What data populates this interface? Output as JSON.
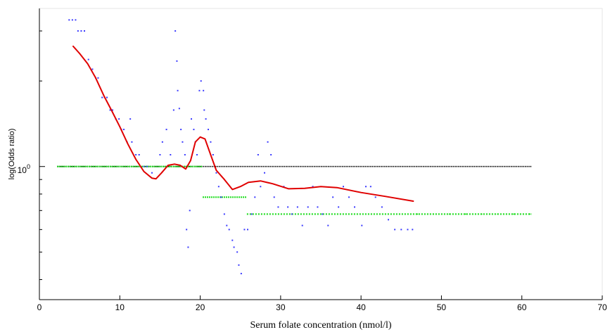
{
  "chart_data": {
    "type": "scatter",
    "title": "",
    "xlabel": "Serum folate concentration (nmol/l)",
    "ylabel": "log(Odds ratio)",
    "xlim": [
      0,
      70
    ],
    "x_ticks": [
      0,
      10,
      20,
      30,
      40,
      50,
      60,
      70
    ],
    "x_tick_labels": [
      "0",
      "10",
      "20",
      "30",
      "40",
      "50",
      "60",
      "70"
    ],
    "y_scale": "log",
    "ylim": [
      0.34,
      3.6
    ],
    "y_tick_label": {
      "value": 1,
      "base": "10",
      "exponent": "0"
    },
    "y_minor_ticks": [
      0.4,
      0.5,
      0.6,
      0.7,
      0.8,
      0.9,
      2,
      3
    ],
    "grid": false,
    "colors": {
      "points": "#3b3bff",
      "smooth": "#e00000",
      "reference": "#000000",
      "steps": "#22dd22"
    },
    "series": [
      {
        "kind": "reference-line",
        "points": [
          [
            2.2,
            1.0
          ],
          [
            61.2,
            1.0
          ]
        ]
      },
      {
        "kind": "step",
        "segments": [
          {
            "x": [
              2.2,
              20.3
            ],
            "y": 1.0
          },
          {
            "x": [
              20.3,
              25.8
            ],
            "y": 0.78
          },
          {
            "x": [
              25.8,
              61.2
            ],
            "y": 0.68
          }
        ]
      },
      {
        "kind": "smooth-line",
        "points": [
          [
            4.2,
            2.65
          ],
          [
            5.0,
            2.5
          ],
          [
            6.0,
            2.3
          ],
          [
            7.0,
            2.05
          ],
          [
            8.0,
            1.78
          ],
          [
            9.0,
            1.57
          ],
          [
            10.0,
            1.38
          ],
          [
            11.0,
            1.2
          ],
          [
            12.0,
            1.06
          ],
          [
            13.0,
            0.96
          ],
          [
            14.0,
            0.91
          ],
          [
            14.5,
            0.905
          ],
          [
            15.2,
            0.95
          ],
          [
            16.0,
            1.01
          ],
          [
            16.8,
            1.02
          ],
          [
            17.5,
            1.01
          ],
          [
            18.2,
            0.98
          ],
          [
            18.8,
            1.05
          ],
          [
            19.4,
            1.22
          ],
          [
            20.0,
            1.27
          ],
          [
            20.6,
            1.25
          ],
          [
            21.3,
            1.1
          ],
          [
            22.0,
            0.97
          ],
          [
            23.0,
            0.9
          ],
          [
            24.0,
            0.83
          ],
          [
            25.0,
            0.85
          ],
          [
            26.0,
            0.88
          ],
          [
            27.5,
            0.89
          ],
          [
            29.0,
            0.87
          ],
          [
            31.0,
            0.835
          ],
          [
            33.0,
            0.838
          ],
          [
            35.0,
            0.85
          ],
          [
            37.0,
            0.843
          ],
          [
            40.0,
            0.81
          ],
          [
            43.0,
            0.785
          ],
          [
            46.5,
            0.755
          ]
        ]
      },
      {
        "kind": "scatter",
        "points": [
          [
            3.7,
            3.28
          ],
          [
            4.1,
            3.28
          ],
          [
            4.5,
            3.28
          ],
          [
            4.8,
            3.0
          ],
          [
            5.2,
            3.0
          ],
          [
            5.6,
            3.0
          ],
          [
            6.1,
            2.38
          ],
          [
            6.6,
            2.2
          ],
          [
            7.0,
            2.05
          ],
          [
            7.3,
            2.05
          ],
          [
            7.8,
            1.75
          ],
          [
            8.1,
            1.75
          ],
          [
            8.4,
            1.75
          ],
          [
            8.8,
            1.58
          ],
          [
            9.1,
            1.58
          ],
          [
            9.5,
            1.47
          ],
          [
            9.9,
            1.47
          ],
          [
            10.2,
            1.35
          ],
          [
            10.5,
            1.35
          ],
          [
            10.9,
            1.22
          ],
          [
            11.3,
            1.47
          ],
          [
            11.5,
            1.22
          ],
          [
            12.0,
            1.1
          ],
          [
            12.4,
            1.1
          ],
          [
            13.0,
            1.0
          ],
          [
            13.4,
            1.0
          ],
          [
            14.0,
            0.95
          ],
          [
            15.0,
            1.1
          ],
          [
            15.3,
            1.22
          ],
          [
            15.8,
            1.35
          ],
          [
            16.3,
            1.1
          ],
          [
            16.7,
            1.58
          ],
          [
            16.9,
            3.0
          ],
          [
            17.1,
            2.35
          ],
          [
            17.2,
            1.85
          ],
          [
            17.4,
            1.6
          ],
          [
            17.6,
            1.35
          ],
          [
            17.8,
            1.22
          ],
          [
            18.1,
            1.1
          ],
          [
            18.3,
            0.6
          ],
          [
            18.5,
            0.52
          ],
          [
            18.7,
            0.7
          ],
          [
            18.9,
            1.47
          ],
          [
            19.2,
            1.35
          ],
          [
            19.4,
            1.22
          ],
          [
            19.6,
            1.1
          ],
          [
            19.9,
            1.85
          ],
          [
            20.1,
            2.0
          ],
          [
            20.4,
            1.85
          ],
          [
            20.5,
            1.58
          ],
          [
            20.7,
            1.47
          ],
          [
            21.0,
            1.35
          ],
          [
            21.3,
            1.22
          ],
          [
            21.6,
            1.1
          ],
          [
            22.0,
            0.95
          ],
          [
            22.3,
            0.85
          ],
          [
            22.6,
            0.78
          ],
          [
            23.0,
            0.68
          ],
          [
            23.3,
            0.62
          ],
          [
            23.6,
            0.6
          ],
          [
            24.0,
            0.55
          ],
          [
            24.2,
            0.52
          ],
          [
            24.6,
            0.5
          ],
          [
            24.8,
            0.45
          ],
          [
            25.1,
            0.42
          ],
          [
            25.5,
            0.6
          ],
          [
            25.9,
            0.6
          ],
          [
            26.4,
            0.68
          ],
          [
            26.8,
            0.78
          ],
          [
            27.2,
            1.1
          ],
          [
            27.5,
            0.85
          ],
          [
            28.0,
            0.95
          ],
          [
            28.4,
            1.22
          ],
          [
            28.8,
            1.1
          ],
          [
            29.2,
            0.78
          ],
          [
            29.7,
            0.72
          ],
          [
            30.4,
            0.85
          ],
          [
            30.9,
            0.72
          ],
          [
            31.4,
            0.68
          ],
          [
            32.1,
            0.72
          ],
          [
            32.7,
            0.62
          ],
          [
            33.4,
            0.72
          ],
          [
            34.0,
            0.85
          ],
          [
            34.6,
            0.72
          ],
          [
            35.2,
            0.68
          ],
          [
            35.9,
            0.62
          ],
          [
            36.5,
            0.78
          ],
          [
            37.2,
            0.72
          ],
          [
            37.8,
            0.85
          ],
          [
            38.5,
            0.78
          ],
          [
            39.2,
            0.72
          ],
          [
            40.1,
            0.62
          ],
          [
            40.6,
            0.85
          ],
          [
            41.2,
            0.85
          ],
          [
            41.8,
            0.78
          ],
          [
            42.6,
            0.72
          ],
          [
            43.4,
            0.65
          ],
          [
            44.2,
            0.6
          ],
          [
            45.0,
            0.6
          ],
          [
            45.8,
            0.6
          ],
          [
            46.4,
            0.6
          ]
        ]
      }
    ]
  }
}
